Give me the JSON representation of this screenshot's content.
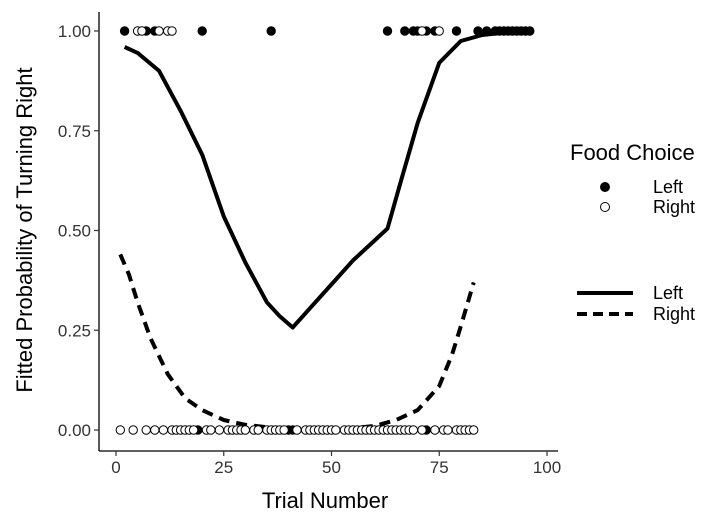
{
  "chart_data": {
    "type": "scatter",
    "xlabel": "Trial Number",
    "ylabel": "Fitted Probability of Turning Right",
    "xlim": [
      -2,
      100
    ],
    "ylim": [
      -0.05,
      1.05
    ],
    "x_ticks": [
      0,
      25,
      50,
      75,
      100
    ],
    "x_tick_labels": [
      "0",
      "25",
      "50",
      "75",
      "100"
    ],
    "y_ticks": [
      0.0,
      0.25,
      0.5,
      0.75,
      1.0
    ],
    "y_tick_labels": [
      "0.00",
      "0.25",
      "0.50",
      "0.75",
      "1.00"
    ],
    "grid": false,
    "legend_position": "right",
    "points_legend": {
      "title": "Food Choice",
      "entries": [
        {
          "label": "Left",
          "marker": "filled-circle"
        },
        {
          "label": "Right",
          "marker": "open-circle"
        }
      ]
    },
    "lines_legend": {
      "entries": [
        {
          "label": "Left",
          "style": "solid"
        },
        {
          "label": "Right",
          "style": "dashed"
        }
      ]
    },
    "points": [
      {
        "choice": "Left",
        "y": 1,
        "x": [
          2,
          7,
          9,
          20,
          36,
          63,
          67,
          69,
          70,
          72,
          74,
          79,
          84,
          86,
          88,
          89,
          90,
          91,
          92,
          93,
          94,
          95,
          96
        ]
      },
      {
        "choice": "Right",
        "y": 1,
        "x": [
          5,
          6,
          10,
          12,
          13,
          71,
          75
        ]
      },
      {
        "choice": "Left",
        "y": 0,
        "x": [
          19,
          40,
          41,
          72
        ]
      },
      {
        "choice": "Right",
        "y": 0,
        "x": [
          1,
          4,
          7,
          9,
          11,
          13,
          14,
          15,
          16,
          17,
          18,
          21,
          22,
          24,
          26,
          27,
          28,
          29,
          30,
          32,
          33,
          35,
          36,
          37,
          38,
          39,
          42,
          44,
          45,
          46,
          47,
          48,
          49,
          50,
          51,
          53,
          54,
          55,
          56,
          57,
          58,
          59,
          60,
          61,
          62,
          63,
          64,
          65,
          66,
          67,
          68,
          69,
          71,
          74,
          76,
          77,
          79,
          80,
          81,
          82,
          83
        ]
      }
    ],
    "series": [
      {
        "name": "Left",
        "x": [
          2,
          5,
          10,
          15,
          20,
          25,
          30,
          35,
          38,
          41,
          45,
          50,
          55,
          60,
          63,
          66,
          70,
          75,
          80,
          85,
          90,
          93,
          96
        ],
        "y": [
          0.96,
          0.945,
          0.9,
          0.8,
          0.69,
          0.535,
          0.42,
          0.32,
          0.285,
          0.257,
          0.305,
          0.365,
          0.425,
          0.475,
          0.505,
          0.62,
          0.77,
          0.92,
          0.975,
          0.99,
          0.996,
          0.998,
          0.999
        ]
      },
      {
        "name": "Right",
        "x": [
          1,
          3,
          5,
          8,
          12,
          16,
          20,
          25,
          30,
          35,
          40,
          45,
          50,
          55,
          60,
          65,
          70,
          75,
          78,
          80,
          83
        ],
        "y": [
          0.44,
          0.39,
          0.32,
          0.23,
          0.14,
          0.08,
          0.05,
          0.025,
          0.013,
          0.007,
          0.004,
          0.003,
          0.003,
          0.005,
          0.01,
          0.025,
          0.05,
          0.11,
          0.19,
          0.26,
          0.37
        ]
      }
    ]
  }
}
